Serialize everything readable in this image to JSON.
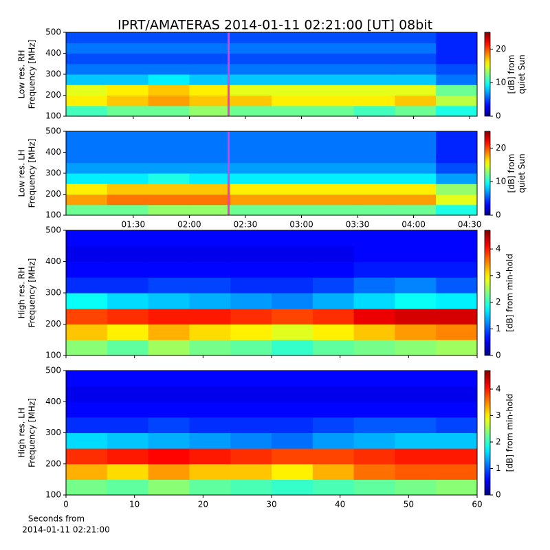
{
  "chart_data": [
    {
      "type": "heatmap",
      "title": "IPRT/AMATERAS 2014-01-11 02:21:00 [UT]   08bit",
      "ylabel": [
        "Low res. RH",
        "Frequency [MHz]"
      ],
      "colorbar_label": [
        "[dB] from",
        "quiet Sun"
      ],
      "colormap": "jet",
      "xlim": [
        54,
        274
      ],
      "ylim": [
        100,
        500
      ],
      "yticks": [
        100,
        200,
        300,
        400,
        500
      ],
      "clim": [
        0,
        25
      ],
      "cticks": [
        0,
        10,
        20
      ],
      "x_edges": [
        54,
        76,
        98,
        120,
        142,
        164,
        186,
        208,
        230,
        252,
        274
      ],
      "y_edges": [
        100,
        150,
        200,
        250,
        300,
        350,
        400,
        450,
        500
      ],
      "values": [
        [
          11,
          12,
          12,
          13,
          12,
          12,
          12,
          11,
          12,
          10
        ],
        [
          16,
          17,
          18,
          17,
          17,
          16,
          16,
          16,
          17,
          14
        ],
        [
          15,
          16,
          17,
          16,
          15,
          15,
          15,
          15,
          15,
          12
        ],
        [
          8,
          8,
          9,
          8,
          8,
          8,
          8,
          8,
          8,
          6
        ],
        [
          6,
          6,
          6,
          6,
          6,
          6,
          6,
          6,
          6,
          5
        ],
        [
          5,
          5,
          5,
          5,
          5,
          5,
          5,
          5,
          5,
          4
        ],
        [
          6,
          6,
          6,
          6,
          6,
          6,
          6,
          6,
          6,
          4
        ],
        [
          5,
          5,
          5,
          5,
          5,
          5,
          5,
          5,
          5,
          4
        ]
      ],
      "highlight_x": 141,
      "highlight_color": "#e03ce0"
    },
    {
      "type": "heatmap",
      "ylabel": [
        "Low res. LH",
        "Frequency [MHz]"
      ],
      "colorbar_label": [
        "[dB] from",
        "quiet Sun"
      ],
      "colormap": "jet",
      "xlim": [
        54,
        274
      ],
      "ylim": [
        100,
        500
      ],
      "yticks": [
        100,
        200,
        300,
        400,
        500
      ],
      "clim": [
        0,
        25
      ],
      "cticks": [
        0,
        10,
        20
      ],
      "xticks": [
        {
          "value": 90,
          "label": "01:30"
        },
        {
          "value": 120,
          "label": "02:00"
        },
        {
          "value": 150,
          "label": "02:30"
        },
        {
          "value": 180,
          "label": "03:00"
        },
        {
          "value": 210,
          "label": "03:30"
        },
        {
          "value": 240,
          "label": "04:00"
        },
        {
          "value": 270,
          "label": "04:30"
        }
      ],
      "x_edges": [
        54,
        76,
        98,
        120,
        142,
        164,
        186,
        208,
        230,
        252,
        274
      ],
      "y_edges": [
        100,
        150,
        200,
        250,
        300,
        350,
        400,
        450,
        500
      ],
      "values": [
        [
          12,
          12,
          13,
          13,
          12,
          12,
          12,
          12,
          12,
          10
        ],
        [
          18,
          19,
          19,
          19,
          18,
          18,
          18,
          18,
          18,
          15
        ],
        [
          16,
          17,
          17,
          17,
          16,
          16,
          16,
          16,
          16,
          13
        ],
        [
          9,
          9,
          10,
          9,
          9,
          9,
          9,
          9,
          9,
          7
        ],
        [
          7,
          7,
          7,
          7,
          7,
          7,
          7,
          7,
          7,
          5
        ],
        [
          6,
          6,
          6,
          6,
          6,
          6,
          6,
          6,
          6,
          4
        ],
        [
          6,
          6,
          6,
          6,
          6,
          6,
          6,
          6,
          6,
          4
        ],
        [
          6,
          6,
          6,
          6,
          6,
          6,
          6,
          6,
          6,
          4
        ]
      ],
      "highlight_x": 141,
      "highlight_color": "#e03ce0"
    },
    {
      "type": "heatmap",
      "ylabel": [
        "High res. RH",
        "Frequency [MHz]"
      ],
      "colorbar_label": [
        "[dB] from min-hold"
      ],
      "colormap": "jet",
      "xlim": [
        0,
        60
      ],
      "ylim": [
        100,
        500
      ],
      "yticks": [
        100,
        200,
        300,
        400,
        500
      ],
      "clim": [
        0,
        4.7
      ],
      "cticks": [
        0,
        1,
        2,
        3,
        4
      ],
      "x_edges": [
        0,
        6,
        12,
        18,
        24,
        30,
        36,
        42,
        48,
        54,
        60
      ],
      "y_edges": [
        100,
        150,
        200,
        250,
        300,
        350,
        400,
        450,
        500
      ],
      "values": [
        [
          2.4,
          2.2,
          2.5,
          2.3,
          2.2,
          2.0,
          2.2,
          2.3,
          2.4,
          2.5
        ],
        [
          3.2,
          3.0,
          3.3,
          3.1,
          3.0,
          2.8,
          3.0,
          3.2,
          3.4,
          3.5
        ],
        [
          3.8,
          3.9,
          4.0,
          4.0,
          3.9,
          3.8,
          3.9,
          4.2,
          4.3,
          4.3
        ],
        [
          1.8,
          1.6,
          1.5,
          1.4,
          1.3,
          1.2,
          1.4,
          1.6,
          1.8,
          1.7
        ],
        [
          0.8,
          0.8,
          0.9,
          0.9,
          0.8,
          0.8,
          0.9,
          1.1,
          1.2,
          1.0
        ],
        [
          0.6,
          0.6,
          0.6,
          0.6,
          0.6,
          0.6,
          0.6,
          0.7,
          0.7,
          0.7
        ],
        [
          0.5,
          0.5,
          0.5,
          0.5,
          0.5,
          0.5,
          0.5,
          0.6,
          0.6,
          0.6
        ],
        [
          0.6,
          0.6,
          0.6,
          0.6,
          0.6,
          0.6,
          0.6,
          0.6,
          0.6,
          0.6
        ]
      ]
    },
    {
      "type": "heatmap",
      "ylabel": [
        "High res. LH",
        "Frequency [MHz]"
      ],
      "colorbar_label": [
        "[dB] from min-hold"
      ],
      "colormap": "jet",
      "xlim": [
        0,
        60
      ],
      "ylim": [
        100,
        500
      ],
      "yticks": [
        100,
        200,
        300,
        400,
        500
      ],
      "clim": [
        0,
        4.7
      ],
      "cticks": [
        0,
        1,
        2,
        3,
        4
      ],
      "xticks": [
        0,
        10,
        20,
        30,
        40,
        50,
        60
      ],
      "xlabel": [
        "Seconds from",
        "2014-01-11 02:21:00"
      ],
      "x_edges": [
        0,
        6,
        12,
        18,
        24,
        30,
        36,
        42,
        48,
        54,
        60
      ],
      "y_edges": [
        100,
        150,
        200,
        250,
        300,
        350,
        400,
        450,
        500
      ],
      "values": [
        [
          2.3,
          2.2,
          2.4,
          2.2,
          2.1,
          2.0,
          2.1,
          2.2,
          2.3,
          2.4
        ],
        [
          3.3,
          3.1,
          3.4,
          3.2,
          3.2,
          3.0,
          3.3,
          3.6,
          3.7,
          3.7
        ],
        [
          3.9,
          4.0,
          4.1,
          4.0,
          3.9,
          3.8,
          3.8,
          3.9,
          4.0,
          4.0
        ],
        [
          1.6,
          1.5,
          1.4,
          1.3,
          1.2,
          1.1,
          1.3,
          1.4,
          1.5,
          1.5
        ],
        [
          0.8,
          0.8,
          0.9,
          0.8,
          0.8,
          0.8,
          0.9,
          1.0,
          1.0,
          0.9
        ],
        [
          0.6,
          0.6,
          0.6,
          0.6,
          0.6,
          0.6,
          0.6,
          0.6,
          0.6,
          0.6
        ],
        [
          0.5,
          0.5,
          0.5,
          0.5,
          0.5,
          0.5,
          0.5,
          0.5,
          0.5,
          0.5
        ],
        [
          0.6,
          0.6,
          0.6,
          0.6,
          0.6,
          0.6,
          0.6,
          0.6,
          0.6,
          0.6
        ]
      ]
    }
  ]
}
